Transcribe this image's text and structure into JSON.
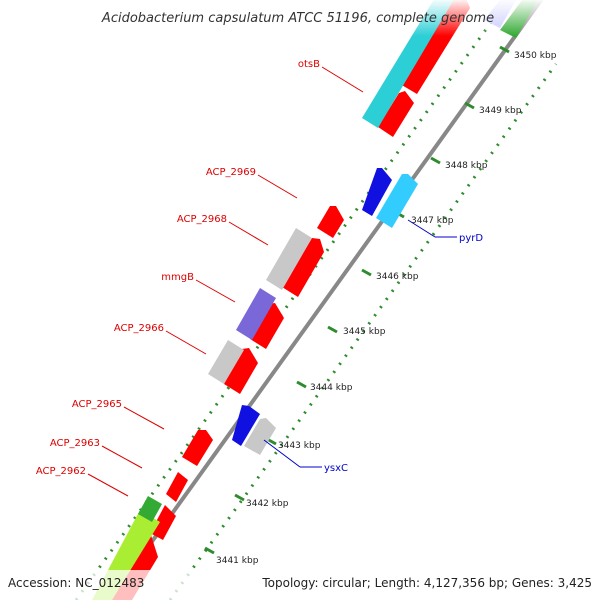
{
  "title": "Acidobacterium capsulatum ATCC 51196, complete genome",
  "footer": {
    "accession": "Accession: NC_012483",
    "summary": "Topology: circular; Length: 4,127,356 bp; Genes: 3,425"
  },
  "colors": {
    "backbone": "#888888",
    "tick": "#2e8b2e",
    "forward_label": "#dd0000",
    "reverse_label": "#0000cc",
    "cds": "#ff0000",
    "gene_gray": "#c8c8c8",
    "gene_purple": "#7b68d8",
    "gene_blue": "#1010e0",
    "gene_lightblue": "#33ccff",
    "gene_cyan": "#2ccfd6",
    "gene_lime": "#aaee33",
    "gene_green": "#33aa33"
  },
  "kbp_labels": [
    "3441 kbp",
    "3442 kbp",
    "3443 kbp",
    "3444 kbp",
    "3445 kbp",
    "3446 kbp",
    "3447 kbp",
    "3448 kbp",
    "3449 kbp",
    "3450 kbp"
  ],
  "gene_labels": [
    {
      "text": "otsB",
      "strand": "forward"
    },
    {
      "text": "ACP_2969",
      "strand": "forward"
    },
    {
      "text": "ACP_2968",
      "strand": "forward"
    },
    {
      "text": "mmgB",
      "strand": "forward"
    },
    {
      "text": "ACP_2966",
      "strand": "forward"
    },
    {
      "text": "ACP_2965",
      "strand": "forward"
    },
    {
      "text": "ACP_2963",
      "strand": "forward"
    },
    {
      "text": "ACP_2962",
      "strand": "forward"
    },
    {
      "text": "pyrD",
      "strand": "reverse"
    },
    {
      "text": "ysxC",
      "strand": "reverse"
    }
  ]
}
